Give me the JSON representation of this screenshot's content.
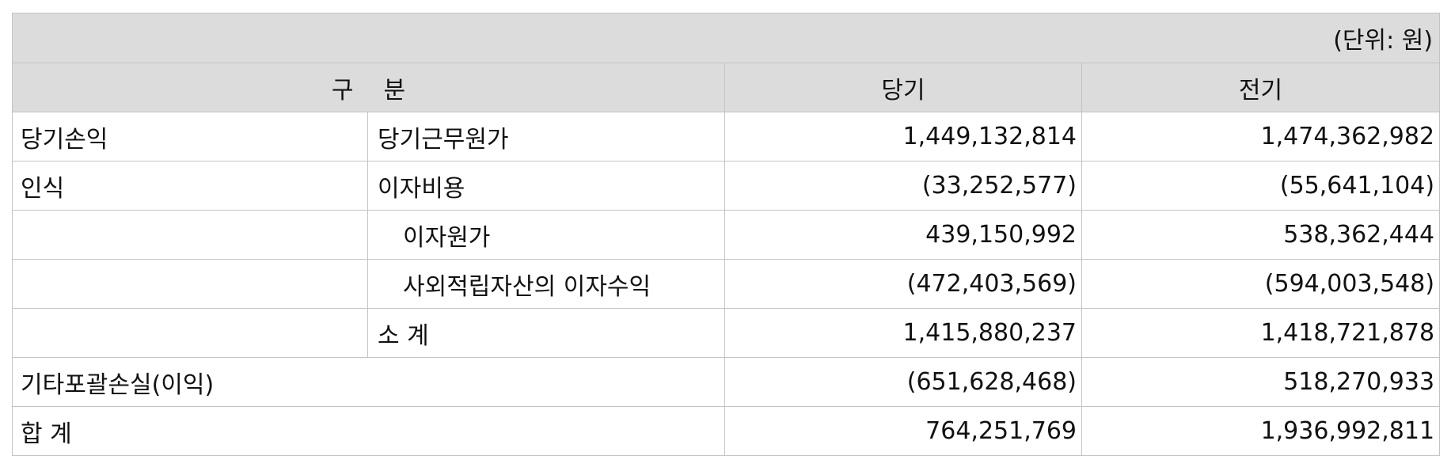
{
  "unit_note": "(단위: 원)",
  "columns": {
    "category": "구  분",
    "current": "당기",
    "prior": "전기"
  },
  "rows": [
    {
      "group": "당기손익",
      "item": "당기근무원가",
      "current": "1,449,132,814",
      "prior": "1,474,362,982"
    },
    {
      "group": "인식",
      "item": "이자비용",
      "current": "(33,252,577)",
      "prior": "(55,641,104)"
    },
    {
      "group": "",
      "item": "이자원가",
      "current": "439,150,992",
      "prior": "538,362,444"
    },
    {
      "group": "",
      "item": "사외적립자산의 이자수익",
      "current": "(472,403,569)",
      "prior": "(594,003,548)"
    },
    {
      "group": "",
      "item": "소 계",
      "current": "1,415,880,237",
      "prior": "1,418,721,878"
    }
  ],
  "oci": {
    "label": "기타포괄손실(이익)",
    "current": "(651,628,468)",
    "prior": "518,270,933"
  },
  "total": {
    "label": "합 계",
    "current": "764,251,769",
    "prior": "1,936,992,811"
  }
}
